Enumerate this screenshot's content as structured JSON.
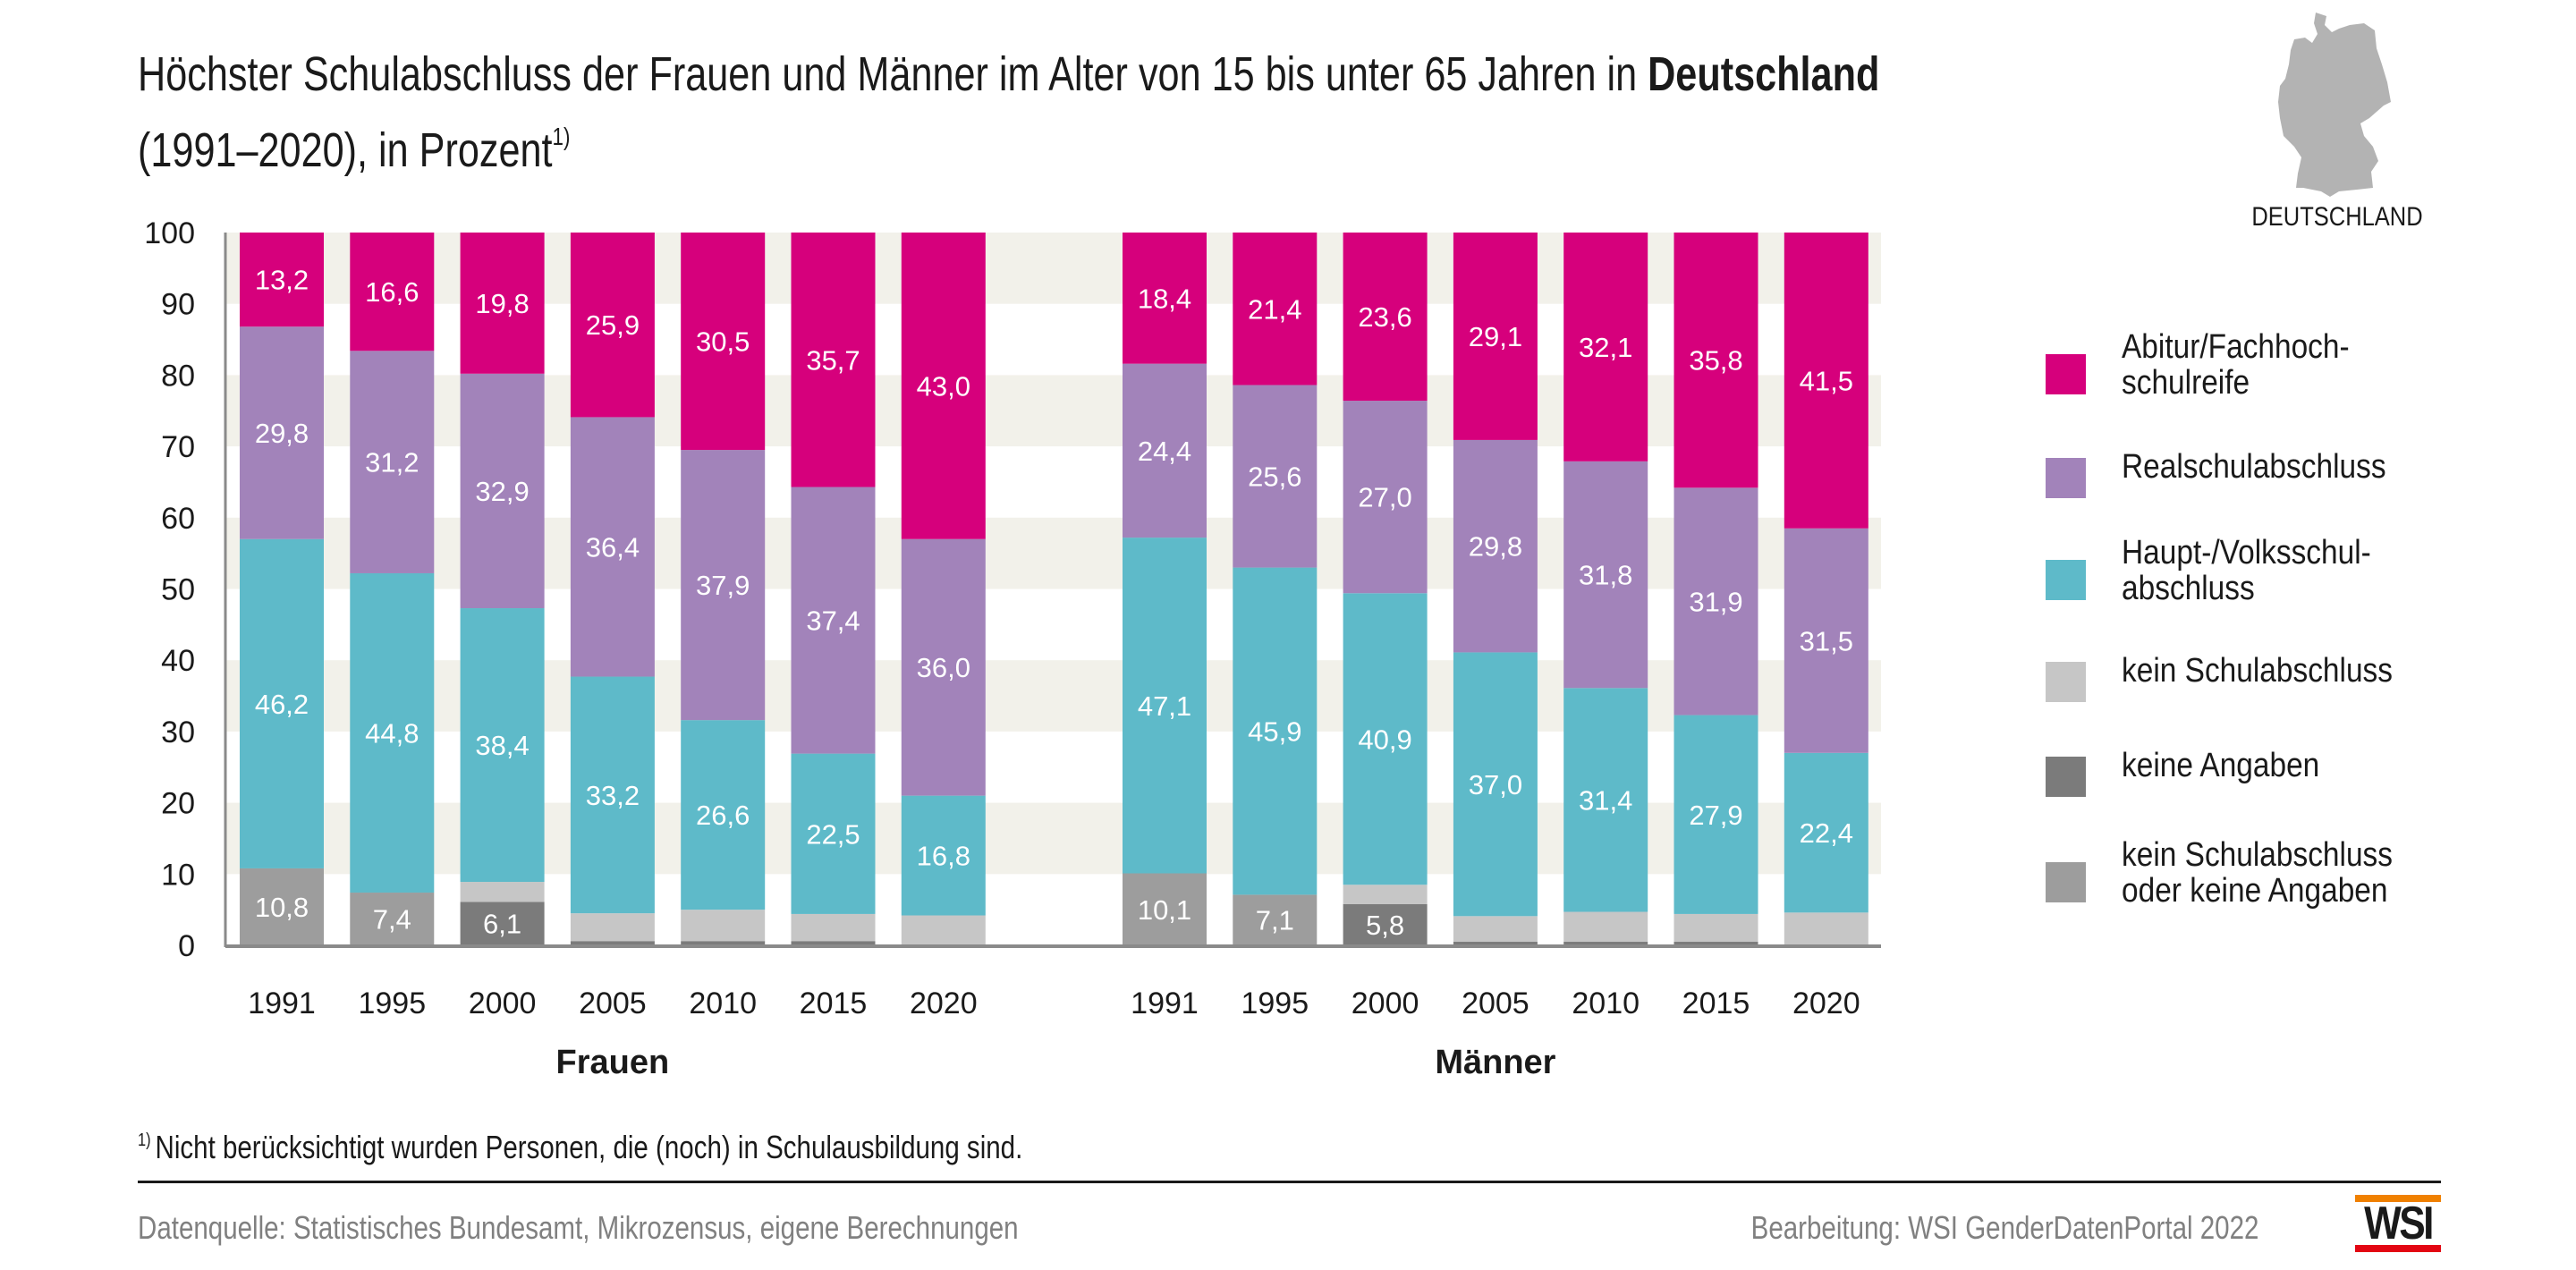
{
  "header": {
    "title_line1_regular": "Höchster Schulabschluss der Frauen und Männer im Alter von 15 bis unter 65 Jahren in ",
    "title_line1_bold": "Deutschland",
    "title_line2": "(1991–2020), in Prozent",
    "title_footnote_marker": "1)"
  },
  "map": {
    "label": "DEUTSCHLAND",
    "icon": "germany-map-icon",
    "color": "#b3b3b3"
  },
  "legend": [
    {
      "key": "abitur",
      "label": "Abitur/Fachhoch-\nschulreife",
      "color": "#d6007c"
    },
    {
      "key": "real",
      "label": "Realschulabschluss",
      "color": "#a283ba"
    },
    {
      "key": "haupt",
      "label": "Haupt-/Volksschul-\nabschluss",
      "color": "#5ebac9"
    },
    {
      "key": "kein",
      "label": "kein Schulabschluss",
      "color": "#c6c6c6"
    },
    {
      "key": "ka",
      "label": "keine Angaben",
      "color": "#7b7b7b"
    },
    {
      "key": "kein_oder_ka",
      "label": "kein Schulabschluss\noder keine Angaben",
      "color": "#9d9d9d"
    }
  ],
  "chart_data": {
    "type": "bar",
    "stacked": true,
    "title": "Höchster Schulabschluss der Frauen und Männer im Alter von 15 bis unter 65 Jahren in Deutschland (1991–2020), in Prozent",
    "xlabel": "",
    "ylabel": "",
    "ylim": [
      0,
      100
    ],
    "yticks": [
      0,
      10,
      20,
      30,
      40,
      50,
      60,
      70,
      80,
      90,
      100
    ],
    "grid": "alternating horizontal bands",
    "legend_position": "right",
    "stack_order_bottom_to_top": [
      "kein_oder_ka",
      "ka",
      "kein",
      "haupt",
      "real",
      "abitur"
    ],
    "groups": [
      {
        "name": "Frauen",
        "categories": [
          "1991",
          "1995",
          "2000",
          "2005",
          "2010",
          "2015",
          "2020"
        ],
        "series": [
          {
            "key": "kein_oder_ka",
            "name": "kein Schulabschluss oder keine Angaben",
            "values": [
              10.8,
              7.4,
              0,
              0,
              0,
              0,
              0
            ],
            "labels": [
              "10,8",
              "7,4",
              "",
              "",
              "",
              "",
              ""
            ]
          },
          {
            "key": "ka",
            "name": "keine Angaben",
            "values": [
              0,
              0,
              6.1,
              0.6,
              0.6,
              0.6,
              0
            ],
            "labels": [
              "",
              "",
              "6,1",
              "",
              "",
              "",
              ""
            ]
          },
          {
            "key": "kein",
            "name": "kein Schulabschluss",
            "values": [
              0,
              0,
              2.8,
              3.9,
              4.4,
              3.8,
              4.2
            ],
            "labels": [
              "",
              "",
              "",
              "",
              "",
              "",
              ""
            ]
          },
          {
            "key": "haupt",
            "name": "Haupt-/Volksschulabschluss",
            "values": [
              46.2,
              44.8,
              38.4,
              33.2,
              26.6,
              22.5,
              16.8
            ],
            "labels": [
              "46,2",
              "44,8",
              "38,4",
              "33,2",
              "26,6",
              "22,5",
              "16,8"
            ]
          },
          {
            "key": "real",
            "name": "Realschulabschluss",
            "values": [
              29.8,
              31.2,
              32.9,
              36.4,
              37.9,
              37.4,
              36.0
            ],
            "labels": [
              "29,8",
              "31,2",
              "32,9",
              "36,4",
              "37,9",
              "37,4",
              "36,0"
            ]
          },
          {
            "key": "abitur",
            "name": "Abitur/Fachhochschulreife",
            "values": [
              13.2,
              16.6,
              19.8,
              25.9,
              30.5,
              35.7,
              43.0
            ],
            "labels": [
              "13,2",
              "16,6",
              "19,8",
              "25,9",
              "30,5",
              "35,7",
              "43,0"
            ]
          }
        ]
      },
      {
        "name": "Männer",
        "categories": [
          "1991",
          "1995",
          "2000",
          "2005",
          "2010",
          "2015",
          "2020"
        ],
        "series": [
          {
            "key": "kein_oder_ka",
            "name": "kein Schulabschluss oder keine Angaben",
            "values": [
              10.1,
              7.1,
              0,
              0,
              0,
              0,
              0
            ],
            "labels": [
              "10,1",
              "7,1",
              "",
              "",
              "",
              "",
              ""
            ]
          },
          {
            "key": "ka",
            "name": "keine Angaben",
            "values": [
              0,
              0,
              5.8,
              0.5,
              0.5,
              0.5,
              0
            ],
            "labels": [
              "",
              "",
              "5,8",
              "",
              "",
              "",
              ""
            ]
          },
          {
            "key": "kein",
            "name": "kein Schulabschluss",
            "values": [
              0,
              0,
              2.7,
              3.6,
              4.2,
              3.9,
              4.6
            ],
            "labels": [
              "",
              "",
              "",
              "",
              "",
              "",
              ""
            ]
          },
          {
            "key": "haupt",
            "name": "Haupt-/Volksschulabschluss",
            "values": [
              47.1,
              45.9,
              40.9,
              37.0,
              31.4,
              27.9,
              22.4
            ],
            "labels": [
              "47,1",
              "45,9",
              "40,9",
              "37,0",
              "31,4",
              "27,9",
              "22,4"
            ]
          },
          {
            "key": "real",
            "name": "Realschulabschluss",
            "values": [
              24.4,
              25.6,
              27.0,
              29.8,
              31.8,
              31.9,
              31.5
            ],
            "labels": [
              "24,4",
              "25,6",
              "27,0",
              "29,8",
              "31,8",
              "31,9",
              "31,5"
            ]
          },
          {
            "key": "abitur",
            "name": "Abitur/Fachhochschulreife",
            "values": [
              18.4,
              21.4,
              23.6,
              29.1,
              32.1,
              35.8,
              41.5
            ],
            "labels": [
              "18,4",
              "21,4",
              "23,6",
              "29,1",
              "32,1",
              "35,8",
              "41,5"
            ]
          }
        ]
      }
    ]
  },
  "footer": {
    "footnote_marker": "1)",
    "footnote": "Nicht berücksichtigt wurden Personen, die (noch) in Schulausbildung sind.",
    "source": "Datenquelle: Statistisches Bundesamt, Mikrozensus, eigene Berechnungen",
    "credit": "Bearbeitung: WSI GenderDatenPortal 2022",
    "logo_text": "WSI",
    "logo_colors": {
      "top": "#f08000",
      "bottom": "#e30613"
    }
  },
  "colors": {
    "band": "#f2f1ea",
    "axis": "#8a8a8a"
  }
}
